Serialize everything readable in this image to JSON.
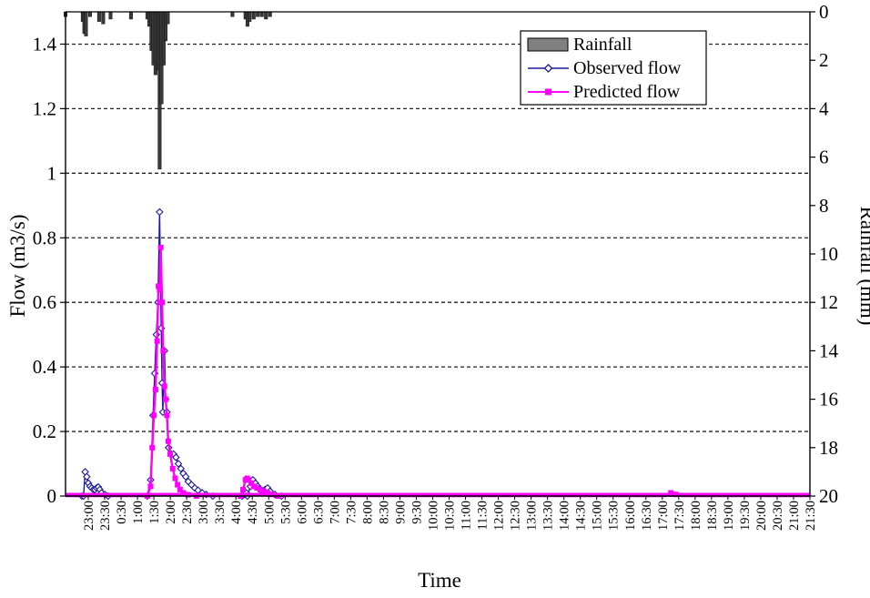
{
  "chart_data": {
    "type": "line",
    "xlabel": "Time",
    "ylabel": "Flow (m3/s)",
    "y2label": "Rainfall (mm)",
    "ylim": [
      0,
      1.5
    ],
    "y2lim": [
      0,
      20
    ],
    "y2_inverted": true,
    "yticks": [
      "0",
      "0.2",
      "0.4",
      "0.6",
      "0.8",
      "1",
      "1.2",
      "1.4"
    ],
    "y2ticks": [
      "0",
      "2",
      "4",
      "6",
      "8",
      "10",
      "12",
      "14",
      "16",
      "18",
      "20"
    ],
    "x_categories": [
      "23:00",
      "23:30",
      "0:30",
      "1:00",
      "1:30",
      "2:00",
      "2:30",
      "3:00",
      "3:30",
      "4:00",
      "4:30",
      "5:00",
      "5:30",
      "6:00",
      "6:30",
      "7:00",
      "7:30",
      "8:00",
      "8:30",
      "9:00",
      "9:30",
      "10:00",
      "10:30",
      "11:00",
      "11:30",
      "12:00",
      "12:30",
      "13:00",
      "13:30",
      "14:00",
      "14:30",
      "15:00",
      "15:30",
      "16:00",
      "16:30",
      "17:00",
      "17:30",
      "18:00",
      "18:30",
      "19:00",
      "19:30",
      "20:00",
      "20:30",
      "21:00",
      "21:30"
    ],
    "x_unit_hours_from_2300": true,
    "grid": "horizontal-dashed",
    "legend_position": "top-right",
    "colors": {
      "rainfall": "#3a3a3a",
      "observed": "#1a1a9a",
      "predicted": "#ff00ff"
    },
    "series": [
      {
        "name": "Rainfall",
        "kind": "bar",
        "axis": "right",
        "points": [
          [
            0.0,
            0.2
          ],
          [
            1.05,
            0.4
          ],
          [
            1.15,
            0.9
          ],
          [
            1.25,
            1.0
          ],
          [
            1.5,
            0.2
          ],
          [
            2.05,
            0.4
          ],
          [
            2.3,
            0.5
          ],
          [
            2.75,
            0.3
          ],
          [
            4.0,
            0.3
          ],
          [
            5.0,
            0.3
          ],
          [
            5.12,
            0.6
          ],
          [
            5.25,
            1.6
          ],
          [
            5.37,
            2.2
          ],
          [
            5.5,
            2.6
          ],
          [
            5.62,
            2.4
          ],
          [
            5.75,
            6.5
          ],
          [
            5.87,
            3.8
          ],
          [
            6.0,
            2.2
          ],
          [
            6.12,
            1.2
          ],
          [
            6.25,
            0.5
          ],
          [
            10.2,
            0.2
          ],
          [
            11.0,
            0.3
          ],
          [
            11.12,
            0.6
          ],
          [
            11.25,
            0.4
          ],
          [
            11.5,
            0.3
          ],
          [
            11.75,
            0.2
          ],
          [
            12.0,
            0.2
          ],
          [
            12.25,
            0.3
          ],
          [
            12.5,
            0.2
          ]
        ]
      },
      {
        "name": "Observed flow",
        "kind": "line",
        "axis": "left",
        "points": [
          [
            0.0,
            0.0
          ],
          [
            1.0,
            0.0
          ],
          [
            1.1,
            0.0
          ],
          [
            1.2,
            0.075
          ],
          [
            1.3,
            0.06
          ],
          [
            1.4,
            0.04
          ],
          [
            1.5,
            0.03
          ],
          [
            1.6,
            0.025
          ],
          [
            1.7,
            0.02
          ],
          [
            1.8,
            0.02
          ],
          [
            1.9,
            0.025
          ],
          [
            2.0,
            0.028
          ],
          [
            2.1,
            0.02
          ],
          [
            2.2,
            0.01
          ],
          [
            2.4,
            0.005
          ],
          [
            2.6,
            0.0
          ],
          [
            5.0,
            0.0
          ],
          [
            5.2,
            0.05
          ],
          [
            5.35,
            0.25
          ],
          [
            5.45,
            0.38
          ],
          [
            5.55,
            0.5
          ],
          [
            5.65,
            0.6
          ],
          [
            5.75,
            0.88
          ],
          [
            5.85,
            0.52
          ],
          [
            5.9,
            0.35
          ],
          [
            5.95,
            0.26
          ],
          [
            6.05,
            0.45
          ],
          [
            6.12,
            0.3
          ],
          [
            6.2,
            0.26
          ],
          [
            6.3,
            0.15
          ],
          [
            6.45,
            0.13
          ],
          [
            6.6,
            0.13
          ],
          [
            6.75,
            0.12
          ],
          [
            6.9,
            0.1
          ],
          [
            7.05,
            0.085
          ],
          [
            7.2,
            0.07
          ],
          [
            7.35,
            0.06
          ],
          [
            7.5,
            0.045
          ],
          [
            7.7,
            0.035
          ],
          [
            7.9,
            0.025
          ],
          [
            8.1,
            0.018
          ],
          [
            8.35,
            0.01
          ],
          [
            8.6,
            0.005
          ],
          [
            9.0,
            0.0
          ],
          [
            10.8,
            0.0
          ],
          [
            10.95,
            0.005
          ],
          [
            11.05,
            0.01
          ],
          [
            11.12,
            0.0
          ],
          [
            11.3,
            0.03
          ],
          [
            11.45,
            0.05
          ],
          [
            11.6,
            0.04
          ],
          [
            11.75,
            0.03
          ],
          [
            11.9,
            0.02
          ],
          [
            12.05,
            0.015
          ],
          [
            12.2,
            0.02
          ],
          [
            12.35,
            0.025
          ],
          [
            12.5,
            0.015
          ],
          [
            12.8,
            0.005
          ],
          [
            13.2,
            0.0
          ],
          [
            45.5,
            0.0
          ]
        ]
      },
      {
        "name": "Predicted flow",
        "kind": "line",
        "axis": "left",
        "points": [
          [
            0.0,
            0.0
          ],
          [
            5.0,
            0.0
          ],
          [
            5.2,
            0.03
          ],
          [
            5.3,
            0.15
          ],
          [
            5.4,
            0.25
          ],
          [
            5.5,
            0.33
          ],
          [
            5.6,
            0.48
          ],
          [
            5.68,
            0.65
          ],
          [
            5.75,
            0.64
          ],
          [
            5.82,
            0.77
          ],
          [
            5.9,
            0.6
          ],
          [
            5.97,
            0.45
          ],
          [
            6.05,
            0.34
          ],
          [
            6.12,
            0.3
          ],
          [
            6.2,
            0.25
          ],
          [
            6.28,
            0.17
          ],
          [
            6.4,
            0.13
          ],
          [
            6.55,
            0.085
          ],
          [
            6.7,
            0.055
          ],
          [
            6.85,
            0.035
          ],
          [
            7.0,
            0.02
          ],
          [
            7.2,
            0.01
          ],
          [
            7.5,
            0.004
          ],
          [
            8.0,
            0.0
          ],
          [
            10.7,
            0.0
          ],
          [
            10.85,
            0.02
          ],
          [
            11.0,
            0.05
          ],
          [
            11.1,
            0.055
          ],
          [
            11.2,
            0.05
          ],
          [
            11.35,
            0.04
          ],
          [
            11.5,
            0.03
          ],
          [
            11.7,
            0.025
          ],
          [
            11.9,
            0.02
          ],
          [
            12.1,
            0.015
          ],
          [
            12.35,
            0.01
          ],
          [
            12.6,
            0.005
          ],
          [
            13.0,
            0.0
          ],
          [
            36.7,
            0.0
          ],
          [
            37.0,
            0.01
          ],
          [
            37.3,
            0.005
          ],
          [
            37.7,
            0.0
          ],
          [
            45.5,
            0.0
          ]
        ]
      }
    ]
  }
}
